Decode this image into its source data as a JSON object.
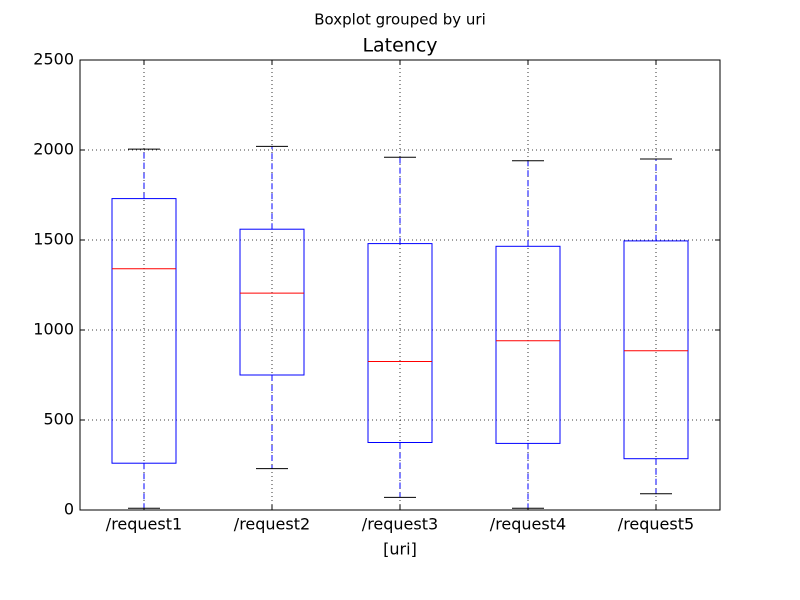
{
  "chart_data": {
    "type": "box",
    "suptitle": "Boxplot grouped by uri",
    "title": "Latency",
    "xlabel": "[uri]",
    "categories": [
      "/request1",
      "/request2",
      "/request3",
      "/request4",
      "/request5"
    ],
    "boxes": [
      {
        "min": 10,
        "q1": 260,
        "median": 1340,
        "q3": 1730,
        "max": 2005
      },
      {
        "min": 230,
        "q1": 750,
        "median": 1205,
        "q3": 1560,
        "max": 2020
      },
      {
        "min": 70,
        "q1": 375,
        "median": 825,
        "q3": 1480,
        "max": 1960
      },
      {
        "min": 10,
        "q1": 370,
        "median": 940,
        "q3": 1465,
        "max": 1940
      },
      {
        "min": 90,
        "q1": 285,
        "median": 885,
        "q3": 1495,
        "max": 1950
      }
    ],
    "box_color": "#0000ff",
    "median_color": "#ff0000",
    "cap_color": "#000000",
    "ylim": [
      0,
      2500
    ],
    "yticks": [
      0,
      500,
      1000,
      1500,
      2000,
      2500
    ],
    "grid": true
  }
}
